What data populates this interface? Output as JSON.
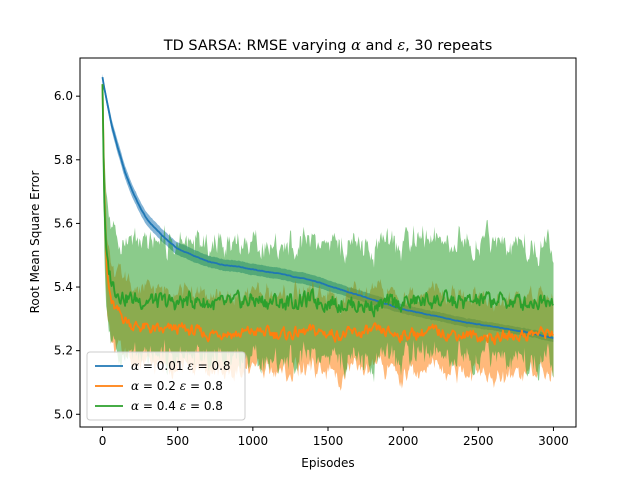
{
  "chart_data": {
    "type": "line",
    "title": "TD SARSA: RMSE varying α and ε, 30 repeats",
    "xlabel": "Episodes",
    "ylabel": "Root Mean Square Error",
    "xlim": [
      -150,
      3150
    ],
    "ylim": [
      4.96,
      6.12
    ],
    "xticks": [
      0,
      500,
      1000,
      1500,
      2000,
      2500,
      3000
    ],
    "yticks": [
      5.0,
      5.2,
      5.4,
      5.6,
      5.8,
      6.0
    ],
    "ytick_labels": [
      "5.0",
      "5.2",
      "5.4",
      "5.6",
      "5.8",
      "6.0"
    ],
    "grid": false,
    "legend_position": "lower-left",
    "series": [
      {
        "name": "α = 0.01 ε = 0.8",
        "label_parts": [
          "α",
          " = 0.01 ",
          "ε",
          " = 0.8"
        ],
        "color": "#1f77b4",
        "x": [
          0,
          10,
          30,
          60,
          100,
          150,
          200,
          250,
          300,
          400,
          500,
          600,
          700,
          800,
          900,
          1000,
          1200,
          1400,
          1600,
          1800,
          2000,
          2200,
          2400,
          2600,
          2800,
          3000
        ],
        "mean": [
          6.06,
          6.03,
          5.98,
          5.91,
          5.84,
          5.76,
          5.7,
          5.65,
          5.61,
          5.56,
          5.52,
          5.5,
          5.48,
          5.47,
          5.465,
          5.455,
          5.44,
          5.42,
          5.39,
          5.36,
          5.33,
          5.31,
          5.29,
          5.275,
          5.26,
          5.24
        ],
        "band": [
          0.01,
          0.012,
          0.015,
          0.018,
          0.02,
          0.02,
          0.02,
          0.02,
          0.02,
          0.02,
          0.02,
          0.02,
          0.018,
          0.018,
          0.018,
          0.018,
          0.018,
          0.018,
          0.016,
          0.016,
          0.014,
          0.014,
          0.014,
          0.012,
          0.012,
          0.012
        ]
      },
      {
        "name": "α = 0.2 ε = 0.8",
        "label_parts": [
          "α",
          " = 0.2 ",
          "ε",
          " = 0.8"
        ],
        "color": "#ff7f0e",
        "x": [
          0,
          10,
          20,
          30,
          40,
          60,
          80,
          100,
          150,
          200,
          300,
          400,
          500,
          600,
          700,
          800,
          900,
          1000,
          1200,
          1400,
          1600,
          1800,
          2000,
          2200,
          2400,
          2600,
          2800,
          3000
        ],
        "mean": [
          6.04,
          5.75,
          5.55,
          5.45,
          5.4,
          5.35,
          5.33,
          5.32,
          5.3,
          5.28,
          5.27,
          5.26,
          5.27,
          5.26,
          5.25,
          5.26,
          5.25,
          5.26,
          5.25,
          5.26,
          5.25,
          5.26,
          5.25,
          5.26,
          5.25,
          5.24,
          5.25,
          5.26
        ],
        "band": [
          0.01,
          0.1,
          0.12,
          0.12,
          0.12,
          0.12,
          0.12,
          0.12,
          0.12,
          0.12,
          0.12,
          0.12,
          0.12,
          0.12,
          0.12,
          0.12,
          0.12,
          0.12,
          0.12,
          0.12,
          0.12,
          0.12,
          0.12,
          0.12,
          0.12,
          0.12,
          0.12,
          0.12
        ]
      },
      {
        "name": "α = 0.4 ε = 0.8",
        "label_parts": [
          "α",
          " = 0.4 ",
          "ε",
          " = 0.8"
        ],
        "color": "#2ca02c",
        "x": [
          0,
          10,
          20,
          30,
          40,
          60,
          80,
          100,
          150,
          200,
          300,
          400,
          500,
          600,
          700,
          800,
          900,
          1000,
          1200,
          1400,
          1600,
          1800,
          2000,
          2200,
          2400,
          2600,
          2800,
          3000
        ],
        "mean": [
          6.04,
          5.7,
          5.55,
          5.48,
          5.45,
          5.42,
          5.4,
          5.39,
          5.37,
          5.36,
          5.36,
          5.35,
          5.35,
          5.36,
          5.35,
          5.34,
          5.35,
          5.36,
          5.35,
          5.36,
          5.35,
          5.34,
          5.35,
          5.36,
          5.35,
          5.36,
          5.35,
          5.37
        ],
        "band": [
          0.01,
          0.15,
          0.18,
          0.18,
          0.18,
          0.18,
          0.18,
          0.18,
          0.18,
          0.18,
          0.18,
          0.18,
          0.18,
          0.18,
          0.18,
          0.18,
          0.18,
          0.18,
          0.18,
          0.18,
          0.18,
          0.18,
          0.18,
          0.18,
          0.18,
          0.18,
          0.18,
          0.18
        ]
      }
    ]
  }
}
